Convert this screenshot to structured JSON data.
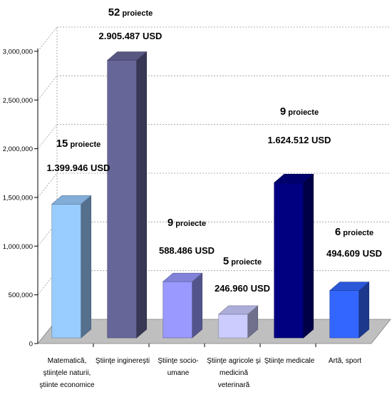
{
  "chart_data": {
    "type": "bar",
    "style": "3d-column",
    "categories": [
      [
        "Matematică,",
        "ştiinţele naturii,",
        "ştiinte economice"
      ],
      [
        "Ştiinţe inginereşti"
      ],
      [
        "Ştiinţe socio-",
        "umane"
      ],
      [
        "Ştiinţe agricole şi",
        "medicină",
        "veterinară"
      ],
      [
        "Ştiinţe medicale"
      ],
      [
        "Artă, sport"
      ]
    ],
    "values": [
      1399946,
      2905487,
      588486,
      246960,
      1624512,
      494609
    ],
    "colors": [
      "#99ccff",
      "#666699",
      "#9999ff",
      "#ccccff",
      "#000080",
      "#3366ff"
    ],
    "annotations": [
      {
        "count": "15",
        "word": "proiecte",
        "usd": "1.399.946 USD"
      },
      {
        "count": "52",
        "word": "proiecte",
        "usd": "2.905.487 USD"
      },
      {
        "count": "9",
        "word": "proiecte",
        "usd": "588.486 USD"
      },
      {
        "count": "5",
        "word": "proiecte",
        "usd": "246.960 USD"
      },
      {
        "count": "9",
        "word": "proiecte",
        "usd": "1.624.512 USD"
      },
      {
        "count": "6",
        "word": "proiecte",
        "usd": "494.609 USD"
      }
    ],
    "y_ticks": [
      0,
      500000,
      1000000,
      1500000,
      2000000,
      2500000,
      3000000
    ],
    "y_tick_labels": [
      "0",
      "500,000",
      "1,000,000",
      "1,500,000",
      "2,000,000",
      "2,500,000",
      "3,000,000"
    ],
    "ylim": [
      0,
      3000000
    ],
    "grid": true,
    "legend": "none",
    "title": "",
    "xlabel": "",
    "ylabel": ""
  }
}
